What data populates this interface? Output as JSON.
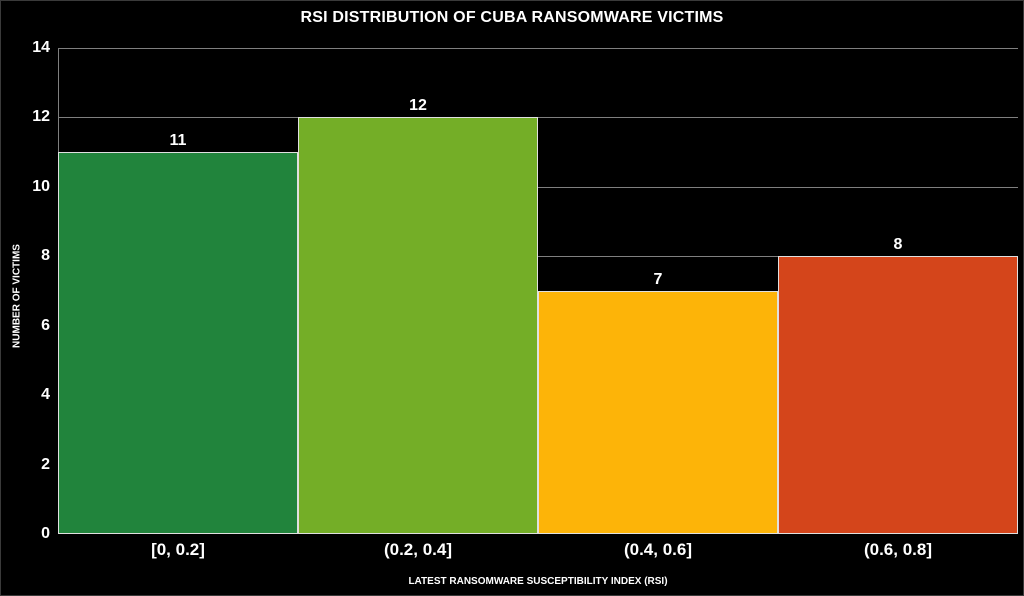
{
  "chart_data": {
    "type": "bar",
    "title": "RSI DISTRIBUTION OF CUBA RANSOMWARE VICTIMS",
    "xlabel": "LATEST RANSOMWARE SUSCEPTIBILITY INDEX (RSI)",
    "ylabel": "NUMBER OF VICTIMS",
    "categories": [
      "[0, 0.2]",
      "(0.2, 0.4]",
      "(0.4, 0.6]",
      "(0.6, 0.8]"
    ],
    "values": [
      11,
      12,
      7,
      8
    ],
    "data_labels": [
      "11",
      "12",
      "7",
      "8"
    ],
    "colors": [
      "#21843c",
      "#74ae27",
      "#fdb408",
      "#d4451b"
    ],
    "ylim": [
      0,
      14
    ],
    "yticks": [
      "0",
      "2",
      "4",
      "6",
      "8",
      "10",
      "12",
      "14"
    ],
    "grid": true,
    "legend": "none",
    "background": "#000000"
  }
}
